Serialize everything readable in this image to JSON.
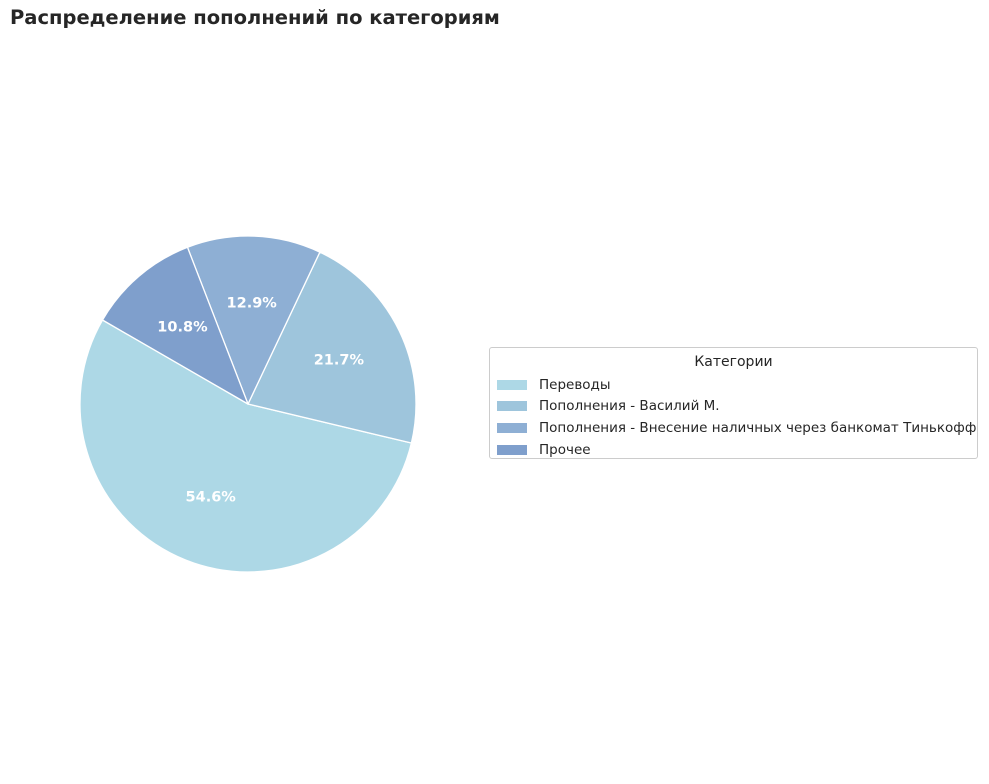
{
  "chart_data": {
    "type": "pie",
    "title": "Распределение пополнений по категориям",
    "categories": [
      "Переводы",
      "Пополнения - Василий М.",
      "Пополнения - Внесение наличных через банкомат Тинькофф",
      "Прочее"
    ],
    "values": [
      54.6,
      21.7,
      12.9,
      10.8
    ],
    "value_labels": [
      "54.6%",
      "21.7%",
      "12.9%",
      "10.8%"
    ],
    "colors": [
      "#add8e6",
      "#9ec5dc",
      "#8eafd4",
      "#7f9fcc"
    ],
    "legend": {
      "title": "Категории",
      "placement": "right"
    },
    "start_angle_deg": 150,
    "direction": "counterclockwise",
    "wedge_edge_color": "#ffffff"
  }
}
